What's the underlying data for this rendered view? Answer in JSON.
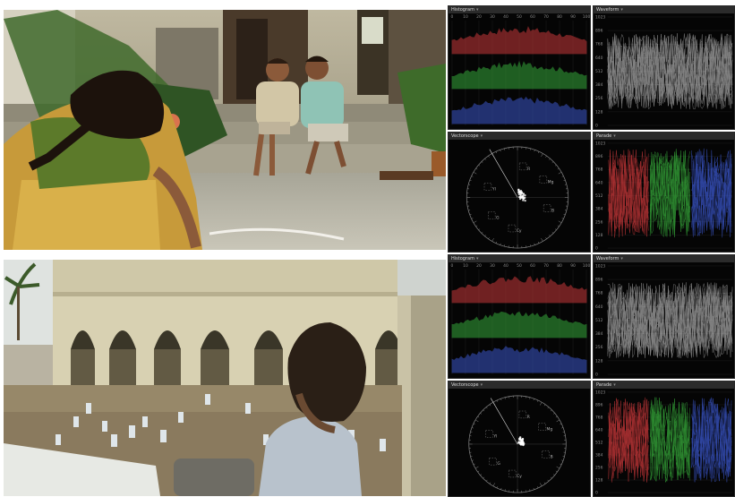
{
  "scopes": {
    "histogram_title": "Histogram",
    "waveform_title": "Waveform",
    "vectorscope_title": "Vectorscope",
    "parade_title": "Parade",
    "histogram_ticks": [
      "0",
      "10",
      "20",
      "30",
      "40",
      "50",
      "60",
      "70",
      "80",
      "90",
      "100"
    ],
    "level_ticks": [
      "1023",
      "896",
      "768",
      "640",
      "512",
      "384",
      "256",
      "128",
      "0"
    ],
    "vector_labels": [
      "R",
      "Mg",
      "B",
      "Cy",
      "G",
      "Yl"
    ]
  },
  "colors": {
    "red_channel": "#c8383a",
    "green_channel": "#36a83a",
    "blue_channel": "#3a55c8",
    "scope_bg": "#050505",
    "panel_header": "#2b2b2b"
  },
  "icons": {
    "scope_menu": "chevron-down-icon"
  }
}
